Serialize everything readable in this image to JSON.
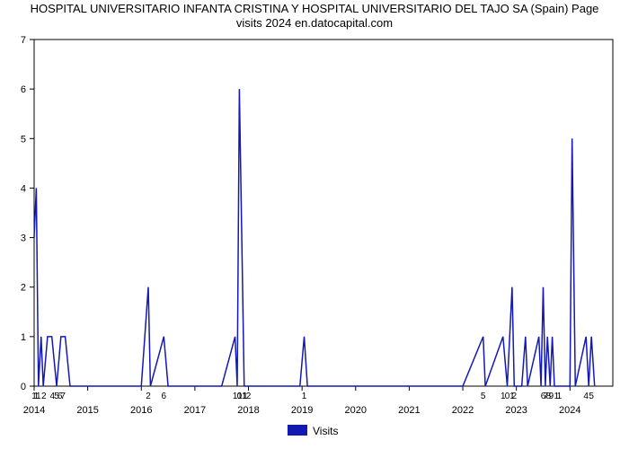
{
  "chart": {
    "type": "line",
    "title_line1": "HOSPITAL UNIVERSITARIO INFANTA CRISTINA Y HOSPITAL UNIVERSITARIO DEL TAJO SA (Spain) Page",
    "title_line2": "visits 2024 en.datocapital.com",
    "title_fontsize": 13,
    "background_color": "#ffffff",
    "line_color": "#1419b5",
    "line_width": 1.5,
    "xlim": [
      2014,
      2024.8
    ],
    "ylim": [
      0,
      7
    ],
    "ytick_step": 1,
    "xtick_step": 1,
    "axis_color": "#000000",
    "tick_fontsize": 11,
    "legend": {
      "label": "Visits",
      "swatch_color": "#1419b5",
      "position": "bottom-center"
    },
    "data": [
      [
        2014.0,
        3.0
      ],
      [
        2014.04,
        4.0
      ],
      [
        2014.08,
        0.0
      ],
      [
        2014.13,
        1.0
      ],
      [
        2014.17,
        0.0
      ],
      [
        2014.25,
        1.0
      ],
      [
        2014.33,
        1.0
      ],
      [
        2014.42,
        0.0
      ],
      [
        2014.5,
        1.0
      ],
      [
        2014.58,
        1.0
      ],
      [
        2014.67,
        0.0
      ],
      [
        2014.75,
        0.0
      ],
      [
        2014.83,
        0.0
      ],
      [
        2014.92,
        0.0
      ],
      [
        2015.0,
        0.0
      ],
      [
        2015.5,
        0.0
      ],
      [
        2016.0,
        0.0
      ],
      [
        2016.13,
        2.0
      ],
      [
        2016.17,
        0.0
      ],
      [
        2016.42,
        1.0
      ],
      [
        2016.5,
        0.0
      ],
      [
        2017.0,
        0.0
      ],
      [
        2017.5,
        0.0
      ],
      [
        2017.75,
        1.0
      ],
      [
        2017.79,
        0.0
      ],
      [
        2017.83,
        6.0
      ],
      [
        2017.92,
        0.0
      ],
      [
        2018.0,
        0.0
      ],
      [
        2018.5,
        0.0
      ],
      [
        2018.96,
        0.0
      ],
      [
        2019.04,
        1.0
      ],
      [
        2019.1,
        0.0
      ],
      [
        2019.5,
        0.0
      ],
      [
        2020.0,
        0.0
      ],
      [
        2020.5,
        0.0
      ],
      [
        2021.0,
        0.0
      ],
      [
        2021.5,
        0.0
      ],
      [
        2022.0,
        0.0
      ],
      [
        2022.38,
        1.0
      ],
      [
        2022.42,
        0.0
      ],
      [
        2022.75,
        1.0
      ],
      [
        2022.83,
        0.0
      ],
      [
        2022.92,
        2.0
      ],
      [
        2022.96,
        0.0
      ],
      [
        2023.1,
        0.0
      ],
      [
        2023.17,
        1.0
      ],
      [
        2023.21,
        0.0
      ],
      [
        2023.42,
        1.0
      ],
      [
        2023.46,
        0.0
      ],
      [
        2023.5,
        2.0
      ],
      [
        2023.54,
        0.0
      ],
      [
        2023.58,
        1.0
      ],
      [
        2023.63,
        0.0
      ],
      [
        2023.67,
        1.0
      ],
      [
        2023.71,
        0.0
      ],
      [
        2024.0,
        0.0
      ],
      [
        2024.04,
        5.0
      ],
      [
        2024.1,
        0.0
      ],
      [
        2024.3,
        1.0
      ],
      [
        2024.35,
        0.0
      ],
      [
        2024.4,
        1.0
      ],
      [
        2024.46,
        0.0
      ]
    ],
    "yticks": [
      0,
      1,
      2,
      3,
      4,
      5,
      6,
      7
    ],
    "xticks": [
      2014,
      2015,
      2016,
      2017,
      2018,
      2019,
      2020,
      2021,
      2022,
      2023,
      2024
    ],
    "data_annotations": [
      {
        "x": 2014.0,
        "label": "1"
      },
      {
        "x": 2014.04,
        "label": "1"
      },
      {
        "x": 2014.08,
        "label": "1"
      },
      {
        "x": 2014.18,
        "label": "2"
      },
      {
        "x": 2014.34,
        "label": "4"
      },
      {
        "x": 2014.42,
        "label": "5"
      },
      {
        "x": 2014.48,
        "label": "6"
      },
      {
        "x": 2014.54,
        "label": "7"
      },
      {
        "x": 2016.13,
        "label": "2"
      },
      {
        "x": 2016.42,
        "label": "6"
      },
      {
        "x": 2017.75,
        "label": "1"
      },
      {
        "x": 2017.83,
        "label": "0"
      },
      {
        "x": 2017.88,
        "label": "11"
      },
      {
        "x": 2017.94,
        "label": "1"
      },
      {
        "x": 2018.0,
        "label": "2"
      },
      {
        "x": 2019.04,
        "label": "1"
      },
      {
        "x": 2022.38,
        "label": "5"
      },
      {
        "x": 2022.75,
        "label": "1"
      },
      {
        "x": 2022.83,
        "label": "0"
      },
      {
        "x": 2022.92,
        "label": "1"
      },
      {
        "x": 2022.96,
        "label": "2"
      },
      {
        "x": 2023.5,
        "label": "6"
      },
      {
        "x": 2023.55,
        "label": "7"
      },
      {
        "x": 2023.6,
        "label": "8"
      },
      {
        "x": 2023.65,
        "label": "9"
      },
      {
        "x": 2023.75,
        "label": "1"
      },
      {
        "x": 2023.8,
        "label": "1"
      },
      {
        "x": 2024.3,
        "label": "4"
      },
      {
        "x": 2024.4,
        "label": "5"
      }
    ]
  }
}
